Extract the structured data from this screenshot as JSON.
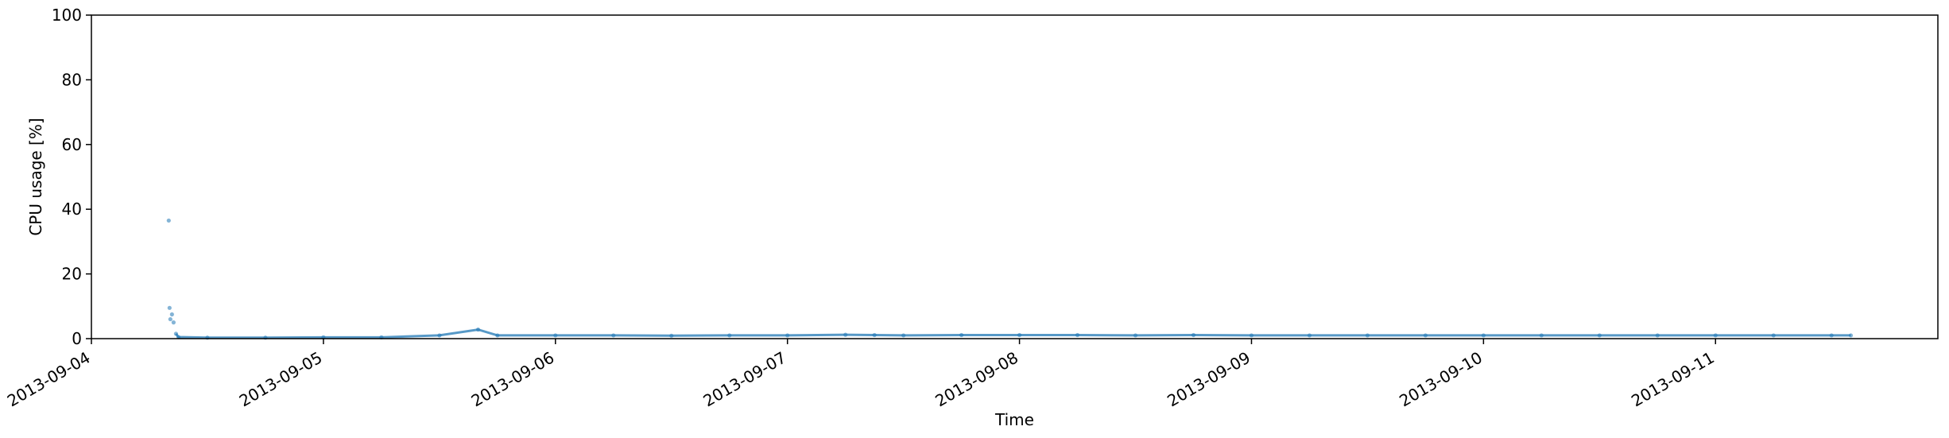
{
  "chart_data": {
    "type": "scatter",
    "title": "",
    "xlabel": "Time",
    "ylabel": "CPU usage [%]",
    "ylim": [
      0,
      100
    ],
    "yticks": [
      0,
      20,
      40,
      60,
      80,
      100
    ],
    "xlim": [
      "2013-09-04T00:00",
      "2013-09-11T23:00"
    ],
    "xticks": [
      "2013-09-04",
      "2013-09-05",
      "2013-09-06",
      "2013-09-07",
      "2013-09-08",
      "2013-09-09",
      "2013-09-10",
      "2013-09-11"
    ],
    "grid": false,
    "legend": "none",
    "marker_color": "#1f77b4",
    "series": [
      {
        "x": [
          "2013-09-04T08:00",
          "2013-09-04T08:05",
          "2013-09-04T08:10",
          "2013-09-04T08:20",
          "2013-09-04T08:30",
          "2013-09-04T08:45",
          "2013-09-04T09:00",
          "2013-09-04T12:00",
          "2013-09-04T18:00",
          "2013-09-05T00:00",
          "2013-09-05T06:00",
          "2013-09-05T12:00",
          "2013-09-05T16:00",
          "2013-09-05T18:00",
          "2013-09-06T00:00",
          "2013-09-06T06:00",
          "2013-09-06T12:00",
          "2013-09-06T18:00",
          "2013-09-07T00:00",
          "2013-09-07T06:00",
          "2013-09-07T09:00",
          "2013-09-07T12:00",
          "2013-09-07T18:00",
          "2013-09-08T00:00",
          "2013-09-08T06:00",
          "2013-09-08T12:00",
          "2013-09-08T18:00",
          "2013-09-09T00:00",
          "2013-09-09T06:00",
          "2013-09-09T12:00",
          "2013-09-09T18:00",
          "2013-09-10T00:00",
          "2013-09-10T06:00",
          "2013-09-10T12:00",
          "2013-09-10T18:00",
          "2013-09-11T00:00",
          "2013-09-11T06:00",
          "2013-09-11T12:00",
          "2013-09-11T14:00"
        ],
        "y": [
          36.5,
          9.5,
          6.0,
          7.5,
          5.0,
          1.5,
          0.5,
          0.3,
          0.3,
          0.4,
          0.4,
          1.0,
          2.8,
          1.0,
          1.0,
          1.0,
          0.9,
          1.0,
          1.0,
          1.2,
          1.1,
          1.0,
          1.1,
          1.1,
          1.1,
          1.0,
          1.1,
          1.0,
          1.0,
          1.0,
          1.0,
          1.0,
          1.0,
          1.0,
          1.0,
          1.0,
          1.0,
          1.0,
          1.0
        ]
      }
    ]
  }
}
